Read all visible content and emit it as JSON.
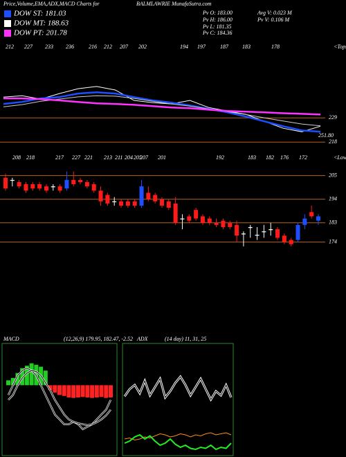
{
  "header": {
    "title_left": "Price,Volume,EMA,ADX,MACD Charts for",
    "title_right": "BALMLAWRIE MunafaSutra.com"
  },
  "legend": [
    {
      "name": "DOW ST: 181.03",
      "color": "#1e4fff"
    },
    {
      "name": "DOW MT: 188.63",
      "color": "#ffffff"
    },
    {
      "name": "DOW PT: 201.78",
      "color": "#ff33ff"
    }
  ],
  "info": [
    "Pv O: 183.00",
    "Pv H: 186.00",
    "Pv L: 181.35",
    "Pv C: 184.36",
    "Avg V: 0.023 M",
    "Pv V: 0.106 M"
  ],
  "ema_panel": {
    "tops": [
      212,
      227,
      233,
      236,
      216,
      212,
      207,
      202,
      194,
      197,
      187,
      183,
      178
    ],
    "tops_label": "<Tops",
    "ylim": [
      214,
      262
    ],
    "yticks": [
      229,
      218
    ],
    "last_label": "251.80",
    "series": [
      {
        "name": "price",
        "color": "#ffffff",
        "values": [
          238.4,
          239,
          237.5,
          240,
          242.2,
          243.2,
          241.6,
          236.9,
          235.9,
          235.3,
          236.9,
          233.7,
          232.1,
          230.6,
          227.4,
          224.3,
          222.7,
          225.2
        ]
      },
      {
        "name": "ema-st",
        "color": "#1e4fff",
        "values": [
          235.3,
          236.2,
          237.8,
          238.4,
          240,
          240.6,
          240,
          238.4,
          236.9,
          235.9,
          234.6,
          233.1,
          231.5,
          229.6,
          227.4,
          225.2,
          223.3,
          222.7
        ]
      },
      {
        "name": "ema-mt",
        "color": "#cccccc",
        "values": [
          234,
          235,
          236.5,
          237.5,
          238.5,
          239,
          238.8,
          237.8,
          236.5,
          235.3,
          234.3,
          233,
          231.8,
          230.5,
          229,
          227.6,
          226.2,
          225.4
        ]
      },
      {
        "name": "ema-pt",
        "color": "#ff33ff",
        "values": [
          237.8,
          237.8,
          237.5,
          236.9,
          236.2,
          235.6,
          235.3,
          234.9,
          234.3,
          233.7,
          233.4,
          232.7,
          232.1,
          231.8,
          231.5,
          231.1,
          230.8,
          230.5
        ]
      }
    ]
  },
  "price_panel": {
    "lows": [
      208,
      218,
      217,
      227,
      221,
      213,
      211,
      204,
      205,
      207,
      201,
      192,
      183,
      182,
      176,
      172
    ],
    "lows_label": "<Lows",
    "ylim": [
      170,
      212
    ],
    "yticks": [
      205,
      194,
      183,
      174
    ],
    "candles": [
      {
        "o": 204,
        "h": 206,
        "l": 198,
        "c": 199
      },
      {
        "o": 203,
        "h": 204,
        "l": 200,
        "c": 202.6
      },
      {
        "o": 202,
        "h": 203,
        "l": 199,
        "c": 200
      },
      {
        "o": 201,
        "h": 202,
        "l": 197,
        "c": 198
      },
      {
        "o": 201,
        "h": 202,
        "l": 198,
        "c": 199
      },
      {
        "o": 201,
        "h": 202,
        "l": 198,
        "c": 199
      },
      {
        "o": 200,
        "h": 201,
        "l": 197,
        "c": 198
      },
      {
        "o": 200,
        "h": 201,
        "l": 198,
        "c": 199.6
      },
      {
        "o": 200,
        "h": 201,
        "l": 197,
        "c": 198
      },
      {
        "o": 199,
        "h": 207,
        "l": 198,
        "c": 203
      },
      {
        "o": 203,
        "h": 207,
        "l": 200,
        "c": 201
      },
      {
        "o": 203,
        "h": 204,
        "l": 201,
        "c": 202
      },
      {
        "o": 202,
        "h": 203,
        "l": 199,
        "c": 200
      },
      {
        "o": 201,
        "h": 202,
        "l": 197,
        "c": 198
      },
      {
        "o": 198,
        "h": 200,
        "l": 191,
        "c": 193
      },
      {
        "o": 196,
        "h": 197,
        "l": 191,
        "c": 192
      },
      {
        "o": 193,
        "h": 195,
        "l": 191,
        "c": 192.6
      },
      {
        "o": 193,
        "h": 194,
        "l": 190,
        "c": 191
      },
      {
        "o": 193,
        "h": 194,
        "l": 190,
        "c": 191
      },
      {
        "o": 193,
        "h": 194,
        "l": 190,
        "c": 191
      },
      {
        "o": 191,
        "h": 203,
        "l": 190,
        "c": 200
      },
      {
        "o": 197,
        "h": 200,
        "l": 193,
        "c": 194
      },
      {
        "o": 196,
        "h": 197,
        "l": 192,
        "c": 193
      },
      {
        "o": 194,
        "h": 195,
        "l": 190,
        "c": 191
      },
      {
        "o": 193,
        "h": 194,
        "l": 189,
        "c": 190
      },
      {
        "o": 192,
        "h": 195,
        "l": 182,
        "c": 183
      },
      {
        "o": 185,
        "h": 187,
        "l": 180,
        "c": 184.6
      },
      {
        "o": 186,
        "h": 187,
        "l": 183,
        "c": 184
      },
      {
        "o": 189,
        "h": 190,
        "l": 184,
        "c": 185
      },
      {
        "o": 186,
        "h": 187,
        "l": 182,
        "c": 183
      },
      {
        "o": 185,
        "h": 186,
        "l": 182,
        "c": 183
      },
      {
        "o": 183,
        "h": 185,
        "l": 181,
        "c": 182
      },
      {
        "o": 184,
        "h": 185,
        "l": 180,
        "c": 181
      },
      {
        "o": 183,
        "h": 184,
        "l": 180,
        "c": 181
      },
      {
        "o": 182,
        "h": 184,
        "l": 174,
        "c": 177
      },
      {
        "o": 178,
        "h": 179,
        "l": 172,
        "c": 177.6
      },
      {
        "o": 181,
        "h": 182,
        "l": 176,
        "c": 180.6
      },
      {
        "o": 177,
        "h": 181,
        "l": 175,
        "c": 177.4
      },
      {
        "o": 179,
        "h": 182,
        "l": 176,
        "c": 178.6
      },
      {
        "o": 180,
        "h": 183,
        "l": 177,
        "c": 179.6
      },
      {
        "o": 180,
        "h": 181,
        "l": 175,
        "c": 176
      },
      {
        "o": 177,
        "h": 178,
        "l": 173,
        "c": 174
      },
      {
        "o": 175,
        "h": 176,
        "l": 172,
        "c": 173
      },
      {
        "o": 175,
        "h": 183,
        "l": 174,
        "c": 182
      },
      {
        "o": 182,
        "h": 187,
        "l": 180,
        "c": 185
      },
      {
        "o": 188,
        "h": 191,
        "l": 185,
        "c": 186
      },
      {
        "o": 184,
        "h": 187,
        "l": 182,
        "c": 186
      }
    ]
  },
  "macd_panel": {
    "title": "MACD",
    "params": "(12,26,9) 179.95, 182.47, -2.52",
    "ylim": [
      -14,
      8
    ],
    "histogram": [
      1,
      1.5,
      2.5,
      3.5,
      4,
      4.5,
      4.2,
      3.8,
      3,
      -1,
      -1.5,
      -2,
      -2.2,
      -2.5,
      -2.6,
      -2.5,
      -2.4,
      -2.5,
      -2.6,
      -2.5,
      -2.4,
      -2.6,
      -2.5
    ],
    "macd": [
      -2,
      0,
      2,
      3,
      3.5,
      3,
      2,
      0,
      -2,
      -4,
      -6,
      -7,
      -8,
      -8,
      -7.5,
      -8,
      -9,
      -8.5,
      -8,
      -7,
      -6,
      -5,
      -3
    ],
    "signal": [
      -3,
      -2,
      0,
      1.5,
      2.5,
      3,
      2.8,
      2,
      0.5,
      -1,
      -3,
      -4.5,
      -6,
      -7,
      -7.5,
      -7.8,
      -8,
      -8.2,
      -8,
      -7.6,
      -7,
      -6.2,
      -5
    ]
  },
  "adx_panel": {
    "title": "ADX",
    "params": "(14 day) 11, 31, 25",
    "ylim": [
      0,
      100
    ],
    "adx": [
      55,
      62,
      66,
      58,
      70,
      56,
      64,
      72,
      54,
      60,
      68,
      74,
      66,
      56,
      64,
      72,
      62,
      52,
      60,
      56,
      66,
      54
    ],
    "plus_di": [
      10,
      12,
      16,
      18,
      14,
      17,
      12,
      8,
      10,
      14,
      9,
      6,
      8,
      5,
      4,
      6,
      5,
      8,
      4,
      6,
      5,
      10
    ],
    "minus_di": [
      14,
      15,
      13,
      14,
      16,
      15,
      17,
      19,
      18,
      16,
      17,
      19,
      18,
      16,
      18,
      17,
      19,
      20,
      18,
      19,
      20,
      18
    ]
  }
}
